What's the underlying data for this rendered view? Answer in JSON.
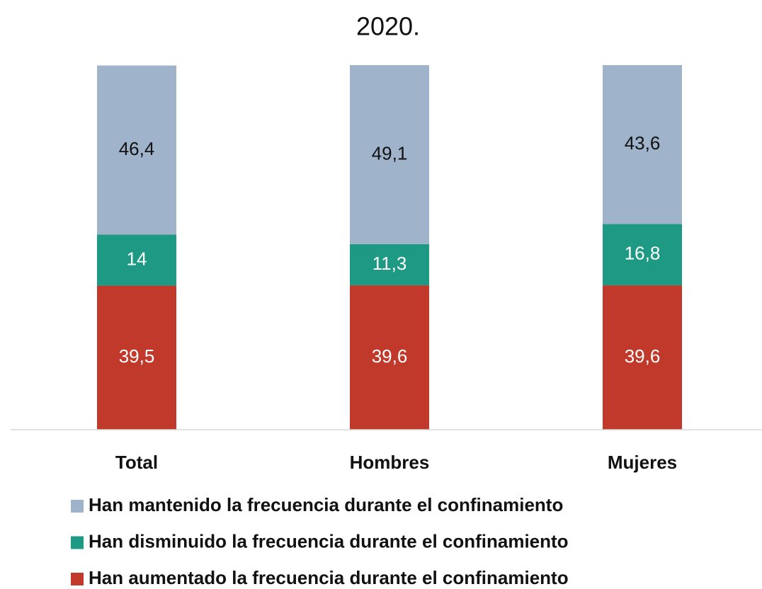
{
  "chart_data": {
    "type": "stacked_bar",
    "title": "2020.",
    "categories": [
      "Total",
      "Hombres",
      "Mujeres"
    ],
    "ylim": [
      0,
      100
    ],
    "series": [
      {
        "name": "Han mantenido la frecuencia durante el confinamiento",
        "color": "#9fb3cb",
        "label_color": "#111111",
        "values": [
          46.4,
          49.1,
          43.6
        ],
        "value_labels": [
          "46,4",
          "49,1",
          "43,6"
        ]
      },
      {
        "name": "Han disminuido la frecuencia durante el confinamiento",
        "color": "#1e9a84",
        "label_color": "#ffffff",
        "values": [
          14,
          11.3,
          16.8
        ],
        "value_labels": [
          "14",
          "11,3",
          "16,8"
        ]
      },
      {
        "name": "Han aumentado la frecuencia durante el confinamiento",
        "color": "#c0392b",
        "label_color": "#ffffff",
        "values": [
          39.5,
          39.6,
          39.6
        ],
        "value_labels": [
          "39,5",
          "39,6",
          "39,6"
        ]
      }
    ]
  }
}
